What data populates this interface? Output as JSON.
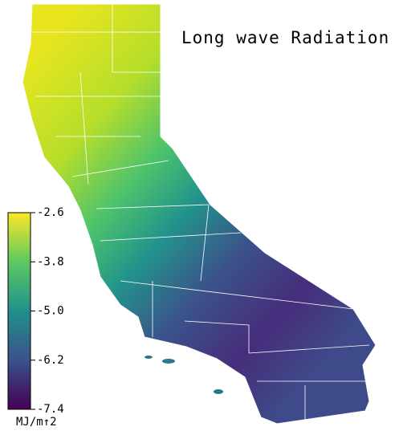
{
  "title": "Long wave Radiation",
  "colorbar": {
    "range": [
      -7.4,
      -2.6
    ],
    "ticks": [
      -2.6,
      -3.8,
      {
        "value": -5.0,
        "label": "-5.0"
      },
      -6.2,
      -7.4
    ],
    "unit": "MJ/m↑2",
    "colors": [
      "#440154",
      "#3b528b",
      "#21908c",
      "#5dc963",
      "#fde725"
    ]
  }
}
